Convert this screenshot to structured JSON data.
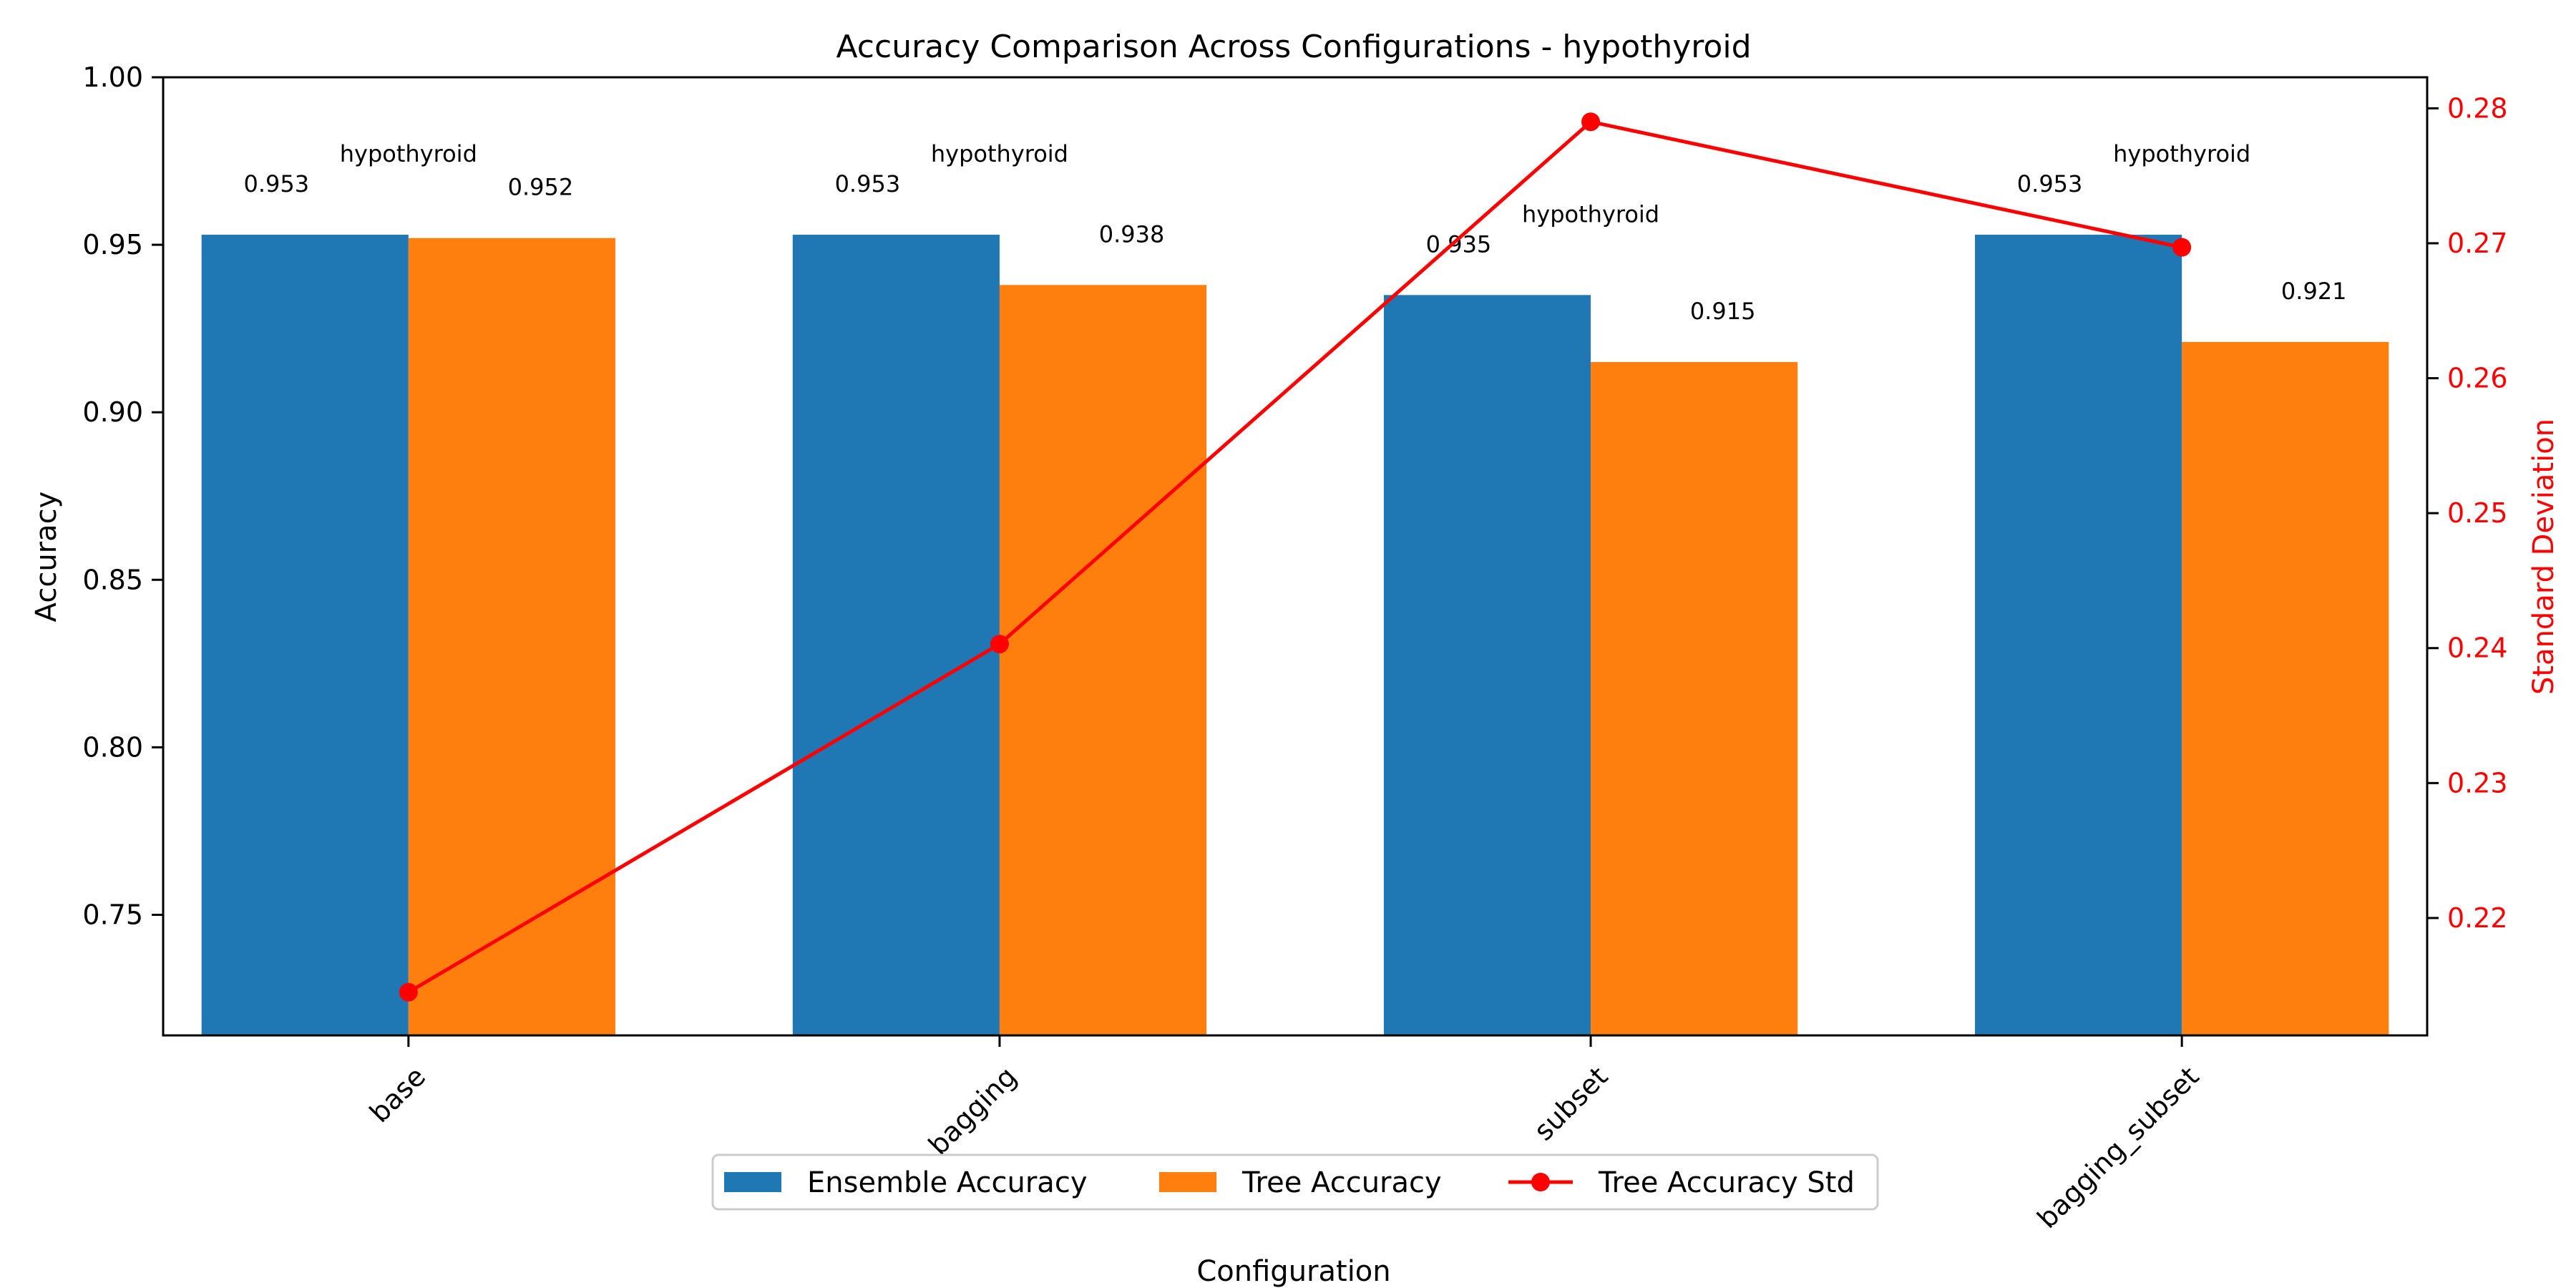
{
  "chart_data": {
    "type": "bar",
    "title": "Accuracy Comparison Across Configurations - hypothyroid",
    "xlabel": "Configuration",
    "ylabel": "Accuracy",
    "y2label": "Standard Deviation",
    "categories": [
      "base",
      "bagging",
      "subset",
      "bagging_subset"
    ],
    "series": [
      {
        "name": "Ensemble Accuracy",
        "kind": "bar",
        "color": "#1f77b4",
        "values": [
          0.953,
          0.953,
          0.935,
          0.953
        ]
      },
      {
        "name": "Tree Accuracy",
        "kind": "bar",
        "color": "#ff7f0e",
        "values": [
          0.952,
          0.938,
          0.915,
          0.921
        ]
      },
      {
        "name": "Tree Accuracy Std",
        "kind": "line",
        "axis": "right",
        "color": "#ff0000",
        "values": [
          0.2145,
          0.2403,
          0.279,
          0.2697
        ]
      }
    ],
    "bar_value_labels": [
      [
        "0.953",
        "0.953",
        "0.935",
        "0.953"
      ],
      [
        "0.952",
        "0.938",
        "0.915",
        "0.921"
      ]
    ],
    "group_annotation": "hypothyroid",
    "ylim": [
      0.714,
      1.0
    ],
    "yticks": [
      "0.75",
      "0.80",
      "0.85",
      "0.90",
      "0.95",
      "1.00"
    ],
    "y2lim": [
      0.2113,
      0.2823
    ],
    "y2ticks": [
      "0.22",
      "0.23",
      "0.24",
      "0.25",
      "0.26",
      "0.27",
      "0.28"
    ],
    "right_axis_color": "#ff0000",
    "legend_position": "bottom-center",
    "grid": false
  }
}
